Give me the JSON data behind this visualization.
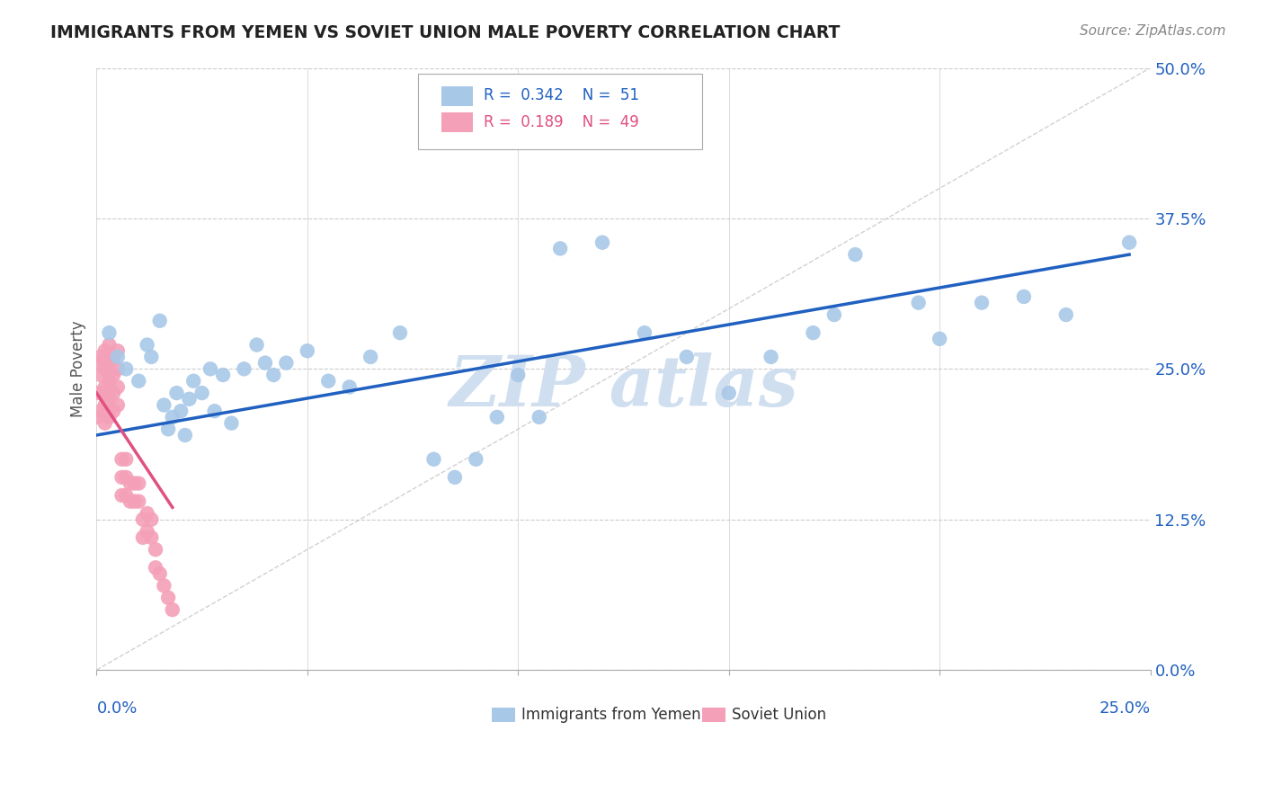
{
  "title": "IMMIGRANTS FROM YEMEN VS SOVIET UNION MALE POVERTY CORRELATION CHART",
  "source": "Source: ZipAtlas.com",
  "ylabel": "Male Poverty",
  "ytick_values": [
    0.0,
    0.125,
    0.25,
    0.375,
    0.5
  ],
  "xlim": [
    0.0,
    0.25
  ],
  "ylim": [
    0.0,
    0.5
  ],
  "color_yemen": "#A8C8E8",
  "color_soviet": "#F4A0B8",
  "color_trend_yemen": "#2060C0",
  "color_trend_soviet": "#E05080",
  "color_refline": "#CCCCCC",
  "watermark_color": "#D0DFF0",
  "yemen_x": [
    0.003,
    0.005,
    0.007,
    0.01,
    0.012,
    0.013,
    0.015,
    0.016,
    0.017,
    0.018,
    0.019,
    0.02,
    0.021,
    0.022,
    0.023,
    0.025,
    0.027,
    0.028,
    0.03,
    0.032,
    0.035,
    0.038,
    0.04,
    0.042,
    0.045,
    0.05,
    0.055,
    0.06,
    0.065,
    0.072,
    0.08,
    0.085,
    0.09,
    0.095,
    0.1,
    0.105,
    0.11,
    0.12,
    0.13,
    0.14,
    0.15,
    0.16,
    0.17,
    0.175,
    0.18,
    0.195,
    0.2,
    0.21,
    0.22,
    0.23,
    0.245
  ],
  "yemen_y": [
    0.28,
    0.26,
    0.25,
    0.24,
    0.27,
    0.26,
    0.29,
    0.22,
    0.2,
    0.21,
    0.23,
    0.215,
    0.195,
    0.225,
    0.24,
    0.23,
    0.25,
    0.215,
    0.245,
    0.205,
    0.25,
    0.27,
    0.255,
    0.245,
    0.255,
    0.265,
    0.24,
    0.235,
    0.26,
    0.28,
    0.175,
    0.16,
    0.175,
    0.21,
    0.245,
    0.21,
    0.35,
    0.355,
    0.28,
    0.26,
    0.23,
    0.26,
    0.28,
    0.295,
    0.345,
    0.305,
    0.275,
    0.305,
    0.31,
    0.295,
    0.355
  ],
  "soviet_x": [
    0.0,
    0.0,
    0.0,
    0.001,
    0.001,
    0.001,
    0.001,
    0.002,
    0.002,
    0.002,
    0.002,
    0.002,
    0.003,
    0.003,
    0.003,
    0.003,
    0.003,
    0.004,
    0.004,
    0.004,
    0.004,
    0.005,
    0.005,
    0.005,
    0.005,
    0.006,
    0.006,
    0.006,
    0.007,
    0.007,
    0.007,
    0.008,
    0.008,
    0.009,
    0.009,
    0.01,
    0.01,
    0.011,
    0.011,
    0.012,
    0.012,
    0.013,
    0.013,
    0.014,
    0.014,
    0.015,
    0.016,
    0.017,
    0.018
  ],
  "soviet_y": [
    0.255,
    0.23,
    0.21,
    0.26,
    0.245,
    0.23,
    0.215,
    0.265,
    0.25,
    0.235,
    0.22,
    0.205,
    0.27,
    0.255,
    0.24,
    0.225,
    0.21,
    0.26,
    0.245,
    0.23,
    0.215,
    0.265,
    0.25,
    0.235,
    0.22,
    0.175,
    0.16,
    0.145,
    0.175,
    0.16,
    0.145,
    0.155,
    0.14,
    0.155,
    0.14,
    0.155,
    0.14,
    0.125,
    0.11,
    0.13,
    0.115,
    0.125,
    0.11,
    0.1,
    0.085,
    0.08,
    0.07,
    0.06,
    0.05
  ],
  "trend_yemen_x0": 0.0,
  "trend_yemen_x1": 0.245,
  "trend_yemen_y0": 0.195,
  "trend_yemen_y1": 0.345,
  "trend_soviet_x0": 0.0,
  "trend_soviet_x1": 0.018,
  "trend_soviet_y0": 0.23,
  "trend_soviet_y1": 0.135
}
